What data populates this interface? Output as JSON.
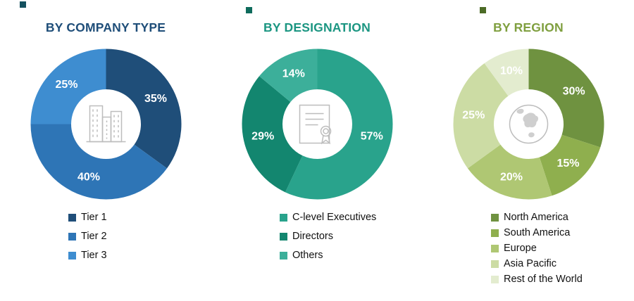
{
  "chart_data": [
    {
      "type": "pie",
      "subtype": "donut",
      "title": "BY COMPANY TYPE",
      "title_color": "#1F4E79",
      "marker_color": "#14505F",
      "center_icon": "buildings-icon",
      "legend_position": "bottom-left",
      "categories": [
        "Tier 1",
        "Tier 2",
        "Tier 3"
      ],
      "values": [
        35,
        40,
        25
      ],
      "slices": [
        {
          "legend": "Tier 1",
          "value": 35,
          "label": "35%",
          "color": "#1F4E79"
        },
        {
          "legend": "Tier 2",
          "value": 40,
          "label": "40%",
          "color": "#2E75B6"
        },
        {
          "legend": "Tier 3",
          "value": 25,
          "label": "25%",
          "color": "#3E8DD0"
        }
      ]
    },
    {
      "type": "pie",
      "subtype": "donut",
      "title": "BY DESIGNATION",
      "title_color": "#1C9682",
      "marker_color": "#0E6B5C",
      "center_icon": "certificate-icon",
      "legend_position": "bottom-left",
      "categories": [
        "C-level Executives",
        "Directors",
        "Others"
      ],
      "values": [
        57,
        29,
        14
      ],
      "slices": [
        {
          "legend": "C-level Executives",
          "value": 57,
          "label": "57%",
          "color": "#29A38C"
        },
        {
          "legend": "Directors",
          "value": 29,
          "label": "29%",
          "color": "#13866F"
        },
        {
          "legend": "Others",
          "value": 14,
          "label": "14%",
          "color": "#3CAF9A"
        }
      ]
    },
    {
      "type": "pie",
      "subtype": "donut",
      "title": "BY REGION",
      "title_color": "#7F9F3F",
      "marker_color": "#4C6B26",
      "center_icon": "globe-icon",
      "legend_position": "bottom-left",
      "categories": [
        "North America",
        "South America",
        "Europe",
        "Asia Pacific",
        "Rest of the World"
      ],
      "values": [
        30,
        15,
        20,
        25,
        10
      ],
      "slices": [
        {
          "legend": "North America",
          "value": 30,
          "label": "30%",
          "color": "#6F9240"
        },
        {
          "legend": "South America",
          "value": 15,
          "label": "15%",
          "color": "#8FAF4E"
        },
        {
          "legend": "Europe",
          "value": 20,
          "label": "20%",
          "color": "#AFC773"
        },
        {
          "legend": "Asia Pacific",
          "value": 25,
          "label": "25%",
          "color": "#CCDCA4"
        },
        {
          "legend": "Rest of the World",
          "value": 10,
          "label": "10%",
          "color": "#E3ECCF"
        }
      ]
    }
  ]
}
